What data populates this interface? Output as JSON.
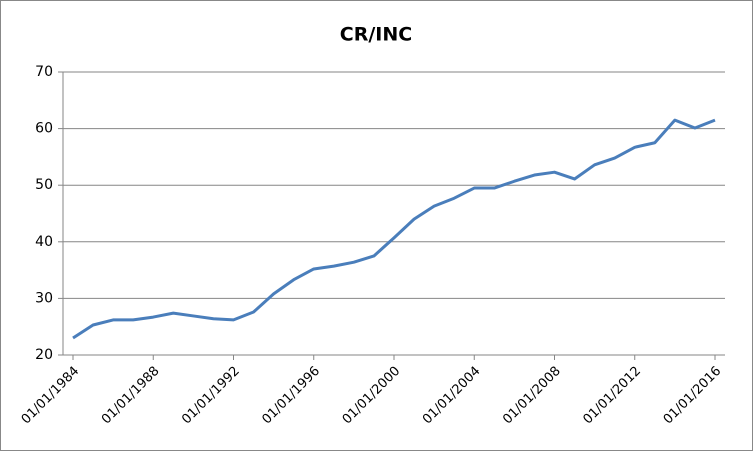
{
  "chart_data": {
    "type": "line",
    "title": "CR/INC",
    "categories": [
      "01/01/1984",
      null,
      null,
      null,
      "01/01/1988",
      null,
      null,
      null,
      "01/01/1992",
      null,
      null,
      null,
      "01/01/1996",
      null,
      null,
      null,
      "01/01/2000",
      null,
      null,
      null,
      "01/01/2004",
      null,
      null,
      null,
      "01/01/2008",
      null,
      null,
      null,
      "01/01/2012",
      null,
      null,
      null,
      "01/01/2016"
    ],
    "values": [
      23.0,
      25.3,
      26.2,
      26.2,
      26.7,
      27.4,
      26.9,
      26.4,
      26.2,
      27.6,
      30.8,
      33.3,
      35.2,
      35.7,
      36.4,
      37.5,
      40.7,
      44.0,
      46.3,
      47.7,
      49.5,
      49.5,
      50.7,
      51.8,
      52.3,
      51.1,
      53.6,
      54.8,
      56.7,
      57.5,
      61.5,
      60.1,
      61.5
    ],
    "color": "#4a7ebb",
    "ylim": [
      20,
      70
    ],
    "yticks": [
      20,
      30,
      40,
      50,
      60,
      70
    ],
    "grid": true
  }
}
